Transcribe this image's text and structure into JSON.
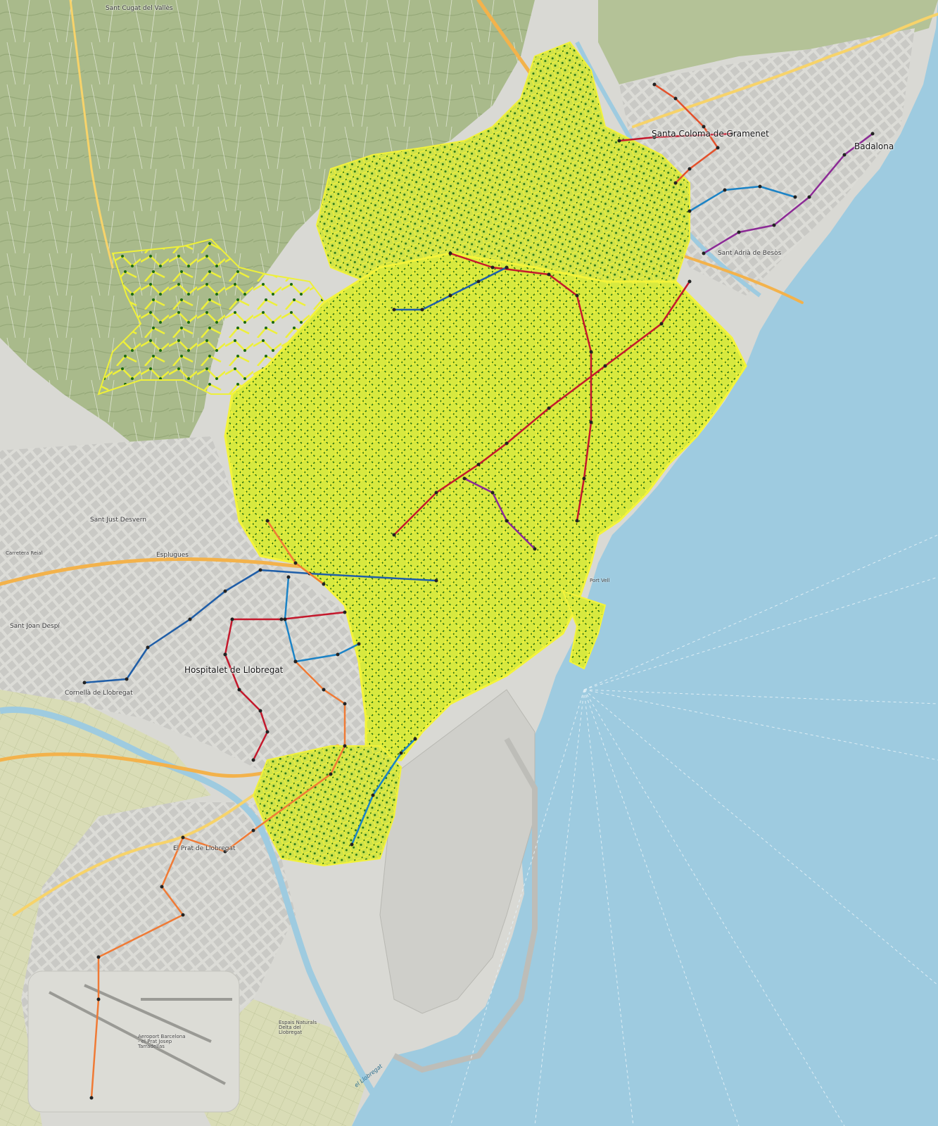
{
  "map": {
    "colors": {
      "sea": "#9ecbe0",
      "hills": "#a8b98a",
      "hills_dark": "#8fa574",
      "urban": "#d9d9d4",
      "urban_block": "#c8c8c4",
      "park": "#b9d4a1",
      "motorway": "#f3b24b",
      "trunk": "#f7d36a",
      "street_overlay": "#f2f238",
      "node": "#1b6b0f",
      "port": "#c9c9c4",
      "airport": "#dcdcd6"
    },
    "transit_line_colors": [
      "#e4512b",
      "#c4182c",
      "#1b83c6",
      "#1f5ea8",
      "#8c2a96",
      "#f07a35"
    ],
    "places": [
      {
        "id": "sant-cugat",
        "name": "Sant Cugat del Vallès",
        "kind": "town"
      },
      {
        "id": "santa-coloma",
        "name": "Santa Coloma de Gramenet",
        "kind": "city"
      },
      {
        "id": "badalona",
        "name": "Badalona",
        "kind": "city"
      },
      {
        "id": "sant-adria",
        "name": "Sant Adrià de Besòs",
        "kind": "town"
      },
      {
        "id": "sant-just",
        "name": "Sant Just Desvern",
        "kind": "town"
      },
      {
        "id": "sant-joan-despi",
        "name": "Sant Joan Despí",
        "kind": "town"
      },
      {
        "id": "cornella",
        "name": "Cornellà de Llobregat",
        "kind": "town"
      },
      {
        "id": "hospitalet",
        "name": "Hospitalet de Llobregat",
        "kind": "city"
      },
      {
        "id": "el-prat",
        "name": "El Prat de Llobregat",
        "kind": "town"
      },
      {
        "id": "esplugues",
        "name": "Esplugues",
        "kind": "town"
      },
      {
        "id": "airport",
        "name": "Aeroport Barcelona - el Prat Josep Tarradellas",
        "kind": "minor"
      },
      {
        "id": "delta",
        "name": "Espais Naturals Delta del Llobregat",
        "kind": "minor"
      },
      {
        "id": "llobregat",
        "name": "el Llobregat",
        "kind": "water"
      },
      {
        "id": "port-vell",
        "name": "Port Vell",
        "kind": "minor"
      },
      {
        "id": "carretera-reial",
        "name": "Carretera Reial",
        "kind": "minor"
      }
    ]
  }
}
